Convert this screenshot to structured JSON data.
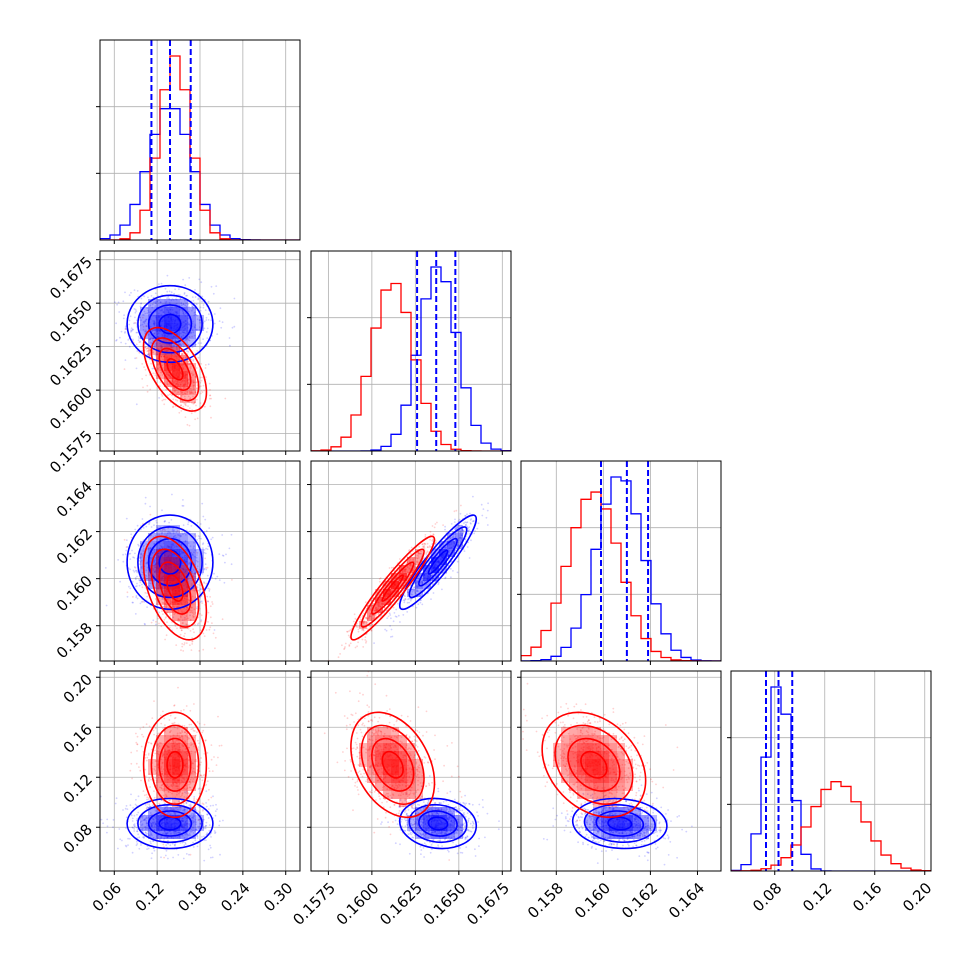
{
  "figure": {
    "colors": {
      "series_a": "#0000ff",
      "series_b": "#ff0000",
      "grid": "#b0b0b0",
      "axis": "#000000"
    }
  },
  "chart_data": {
    "type": "corner",
    "series": [
      {
        "color": "#0000ff",
        "params": [
          {
            "mean": 0.138,
            "sd": 0.03,
            "q16": 0.112,
            "q50": 0.138,
            "q84": 0.167
          },
          {
            "mean": 0.1638,
            "sd": 0.0011,
            "q16": 0.1626,
            "q50": 0.1637,
            "q84": 0.1648
          },
          {
            "mean": 0.1607,
            "sd": 0.001,
            "q16": 0.1599,
            "q50": 0.161,
            "q84": 0.1619
          },
          {
            "mean": 0.083,
            "sd": 0.01,
            "q16": 0.073,
            "q50": 0.083,
            "q84": 0.094
          }
        ],
        "correlations": [
          [
            1,
            0.0,
            0.0,
            0.0
          ],
          [
            0.0,
            1,
            0.92,
            -0.1
          ],
          [
            0.0,
            0.92,
            1,
            -0.1
          ],
          [
            0.0,
            -0.1,
            -0.1,
            1
          ]
        ]
      },
      {
        "color": "#ff0000",
        "params": [
          {
            "mean": 0.145,
            "sd": 0.022
          },
          {
            "mean": 0.1612,
            "sd": 0.0012
          },
          {
            "mean": 0.1596,
            "sd": 0.0011
          },
          {
            "mean": 0.13,
            "sd": 0.021
          }
        ],
        "correlations": [
          [
            1,
            -0.55,
            -0.45,
            0.0
          ],
          [
            -0.55,
            1,
            0.94,
            -0.35
          ],
          [
            -0.45,
            0.94,
            1,
            -0.3
          ],
          [
            0.0,
            -0.35,
            -0.3,
            1
          ]
        ]
      }
    ],
    "axes": [
      {
        "range": [
          0.04,
          0.32
        ],
        "ticks": [
          0.06,
          0.12,
          0.18,
          0.24,
          0.3
        ],
        "tick_labels": [
          "0.06",
          "0.12",
          "0.18",
          "0.24",
          "0.30"
        ]
      },
      {
        "range": [
          0.1565,
          0.168
        ],
        "ticks": [
          0.1575,
          0.16,
          0.1625,
          0.165,
          0.1675
        ],
        "tick_labels": [
          "0.1575",
          "0.1600",
          "0.1625",
          "0.1650",
          "0.1675"
        ]
      },
      {
        "range": [
          0.1565,
          0.165
        ],
        "ticks": [
          0.158,
          0.16,
          0.162,
          0.164
        ],
        "tick_labels": [
          "0.158",
          "0.160",
          "0.162",
          "0.164"
        ]
      },
      {
        "range": [
          0.045,
          0.205
        ],
        "ticks": [
          0.08,
          0.12,
          0.16,
          0.2
        ],
        "tick_labels": [
          "0.08",
          "0.12",
          "0.16",
          "0.20"
        ]
      }
    ],
    "quantile_lines_series": 0,
    "contour_levels": [
      0.5,
      1.0,
      1.5,
      2.0
    ],
    "grid": true,
    "legend": false
  }
}
